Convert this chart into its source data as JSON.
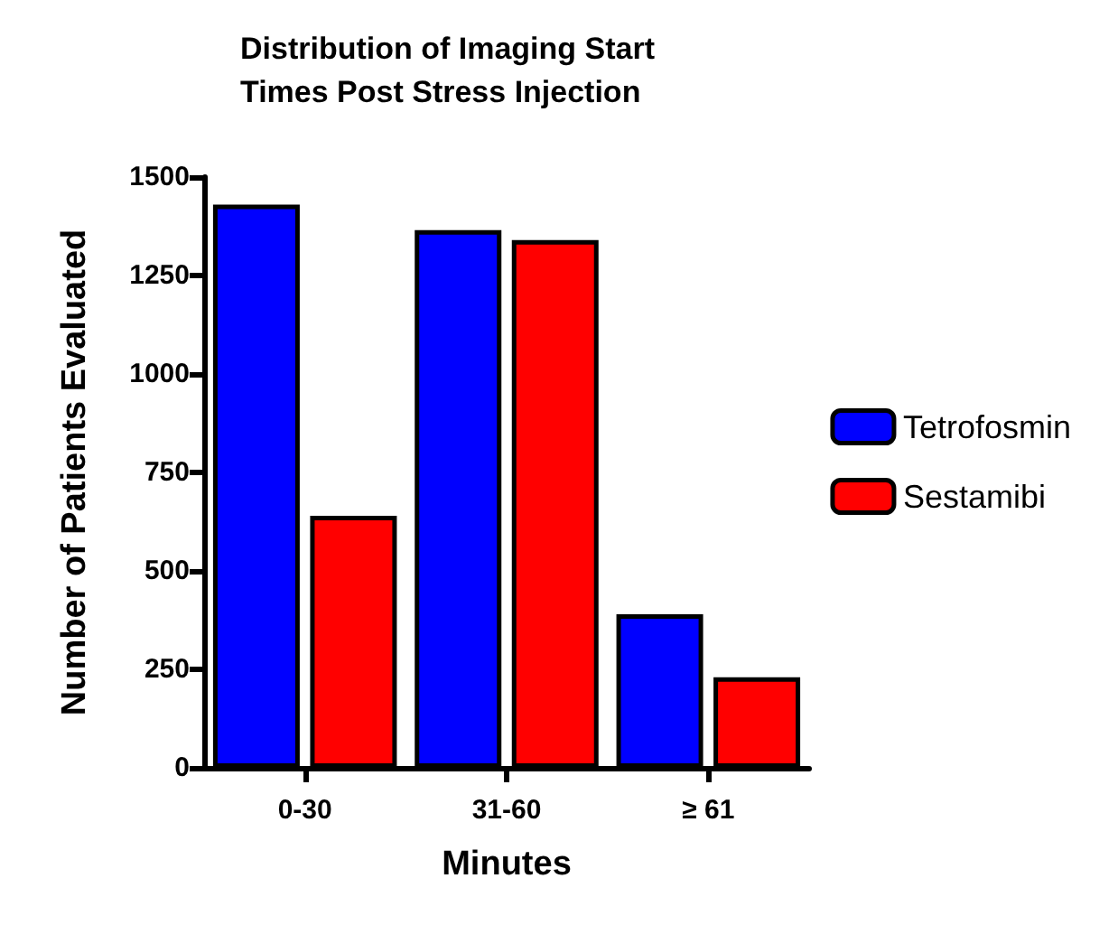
{
  "chart_data": {
    "type": "bar",
    "title": "Distribution of Imaging Start\nTimes Post Stress Injection",
    "xlabel": "Minutes",
    "ylabel": "Number of Patients Evaluated",
    "categories": [
      "0-30",
      "31-60",
      "≥ 61"
    ],
    "series": [
      {
        "name": "Tetrofosmin",
        "color": "#0000ff",
        "values": [
          1430,
          1365,
          390
        ]
      },
      {
        "name": "Sestamibi",
        "color": "#ff0000",
        "values": [
          640,
          1340,
          230
        ]
      }
    ],
    "ylim": [
      0,
      1500
    ],
    "yticks": [
      0,
      250,
      500,
      750,
      1000,
      1250,
      1500
    ],
    "grid": false,
    "legend": "right"
  }
}
